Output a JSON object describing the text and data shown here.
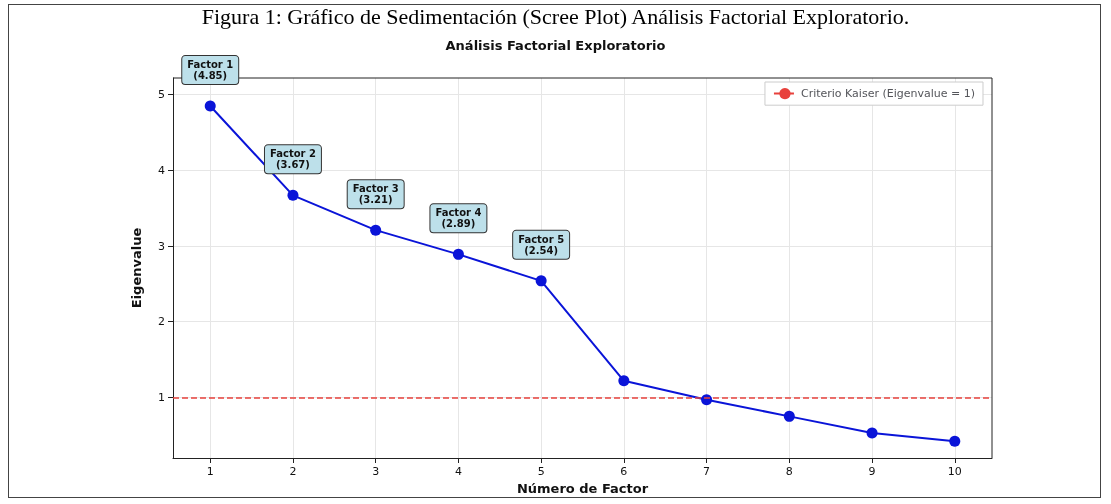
{
  "chart_data": {
    "type": "line",
    "title": "Figura 1: Gráfico de Sedimentación (Scree Plot) Análisis Factorial Exploratorio.",
    "subtitle": "Análisis Factorial Exploratorio",
    "xlabel": "Número de Factor",
    "ylabel": "Eigenvalue",
    "x": [
      1,
      2,
      3,
      4,
      5,
      6,
      7,
      8,
      9,
      10
    ],
    "series": [
      {
        "color": "#0a14d8",
        "values": [
          4.85,
          3.67,
          3.21,
          2.89,
          2.54,
          1.22,
          0.97,
          0.75,
          0.53,
          0.42
        ]
      }
    ],
    "xlim": [
      0.55,
      10.45
    ],
    "xticks": [
      1,
      2,
      3,
      4,
      5,
      6,
      7,
      8,
      9,
      10
    ],
    "ylim": [
      0.2,
      5.22
    ],
    "yticks": [
      1,
      2,
      3,
      4,
      5
    ],
    "ref_lines": [
      {
        "axis": "y",
        "value": 1,
        "label": "Criterio Kaiser (Eigenvalue = 1)",
        "color": "#e8413c",
        "line_style": "dashed"
      }
    ],
    "annotations": [
      {
        "text": "Factor 1\n(4.85)",
        "x": 1,
        "y": 4.85
      },
      {
        "text": "Factor 2\n(3.67)",
        "x": 2,
        "y": 3.67
      },
      {
        "text": "Factor 3\n(3.21)",
        "x": 3,
        "y": 3.21
      },
      {
        "text": "Factor 4\n(2.89)",
        "x": 4,
        "y": 2.89
      },
      {
        "text": "Factor 5\n(2.54)",
        "x": 5,
        "y": 2.54
      }
    ],
    "grid": true,
    "legend": "top right",
    "marker": "circle",
    "line_style": "solid"
  }
}
